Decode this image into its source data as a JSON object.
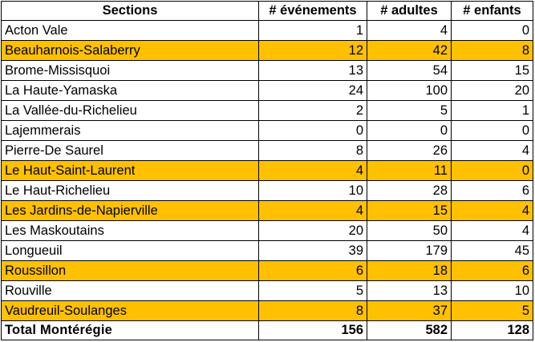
{
  "table": {
    "headers": [
      "Sections",
      "# événements",
      "# adultes",
      "# enfants"
    ],
    "highlight_color": "#ffc000",
    "rows": [
      {
        "section": "Acton Vale",
        "evenements": "1",
        "adultes": "4",
        "enfants": "0",
        "highlight": false
      },
      {
        "section": "Beauharnois-Salaberry",
        "evenements": "12",
        "adultes": "42",
        "enfants": "8",
        "highlight": true
      },
      {
        "section": "Brome-Missisquoi",
        "evenements": "13",
        "adultes": "54",
        "enfants": "15",
        "highlight": false
      },
      {
        "section": "La Haute-Yamaska",
        "evenements": "24",
        "adultes": "100",
        "enfants": "20",
        "highlight": false
      },
      {
        "section": "La Vallée-du-Richelieu",
        "evenements": "2",
        "adultes": "5",
        "enfants": "1",
        "highlight": false
      },
      {
        "section": "Lajemmerais",
        "evenements": "0",
        "adultes": "0",
        "enfants": "0",
        "highlight": false
      },
      {
        "section": "Pierre-De Saurel",
        "evenements": "8",
        "adultes": "26",
        "enfants": "4",
        "highlight": false
      },
      {
        "section": "Le Haut-Saint-Laurent",
        "evenements": "4",
        "adultes": "11",
        "enfants": "0",
        "highlight": true
      },
      {
        "section": "Le Haut-Richelieu",
        "evenements": "10",
        "adultes": "28",
        "enfants": "6",
        "highlight": false
      },
      {
        "section": "Les Jardins-de-Napierville",
        "evenements": "4",
        "adultes": "15",
        "enfants": "4",
        "highlight": true
      },
      {
        "section": "Les Maskoutains",
        "evenements": "20",
        "adultes": "50",
        "enfants": "4",
        "highlight": false
      },
      {
        "section": "Longueuil",
        "evenements": "39",
        "adultes": "179",
        "enfants": "45",
        "highlight": false
      },
      {
        "section": "Roussillon",
        "evenements": "6",
        "adultes": "18",
        "enfants": "6",
        "highlight": true
      },
      {
        "section": "Rouville",
        "evenements": "5",
        "adultes": "13",
        "enfants": "10",
        "highlight": false
      },
      {
        "section": "Vaudreuil-Soulanges",
        "evenements": "8",
        "adultes": "37",
        "enfants": "5",
        "highlight": true
      }
    ],
    "total": {
      "section": "Total  Montérégie",
      "evenements": "156",
      "adultes": "582",
      "enfants": "128"
    }
  }
}
